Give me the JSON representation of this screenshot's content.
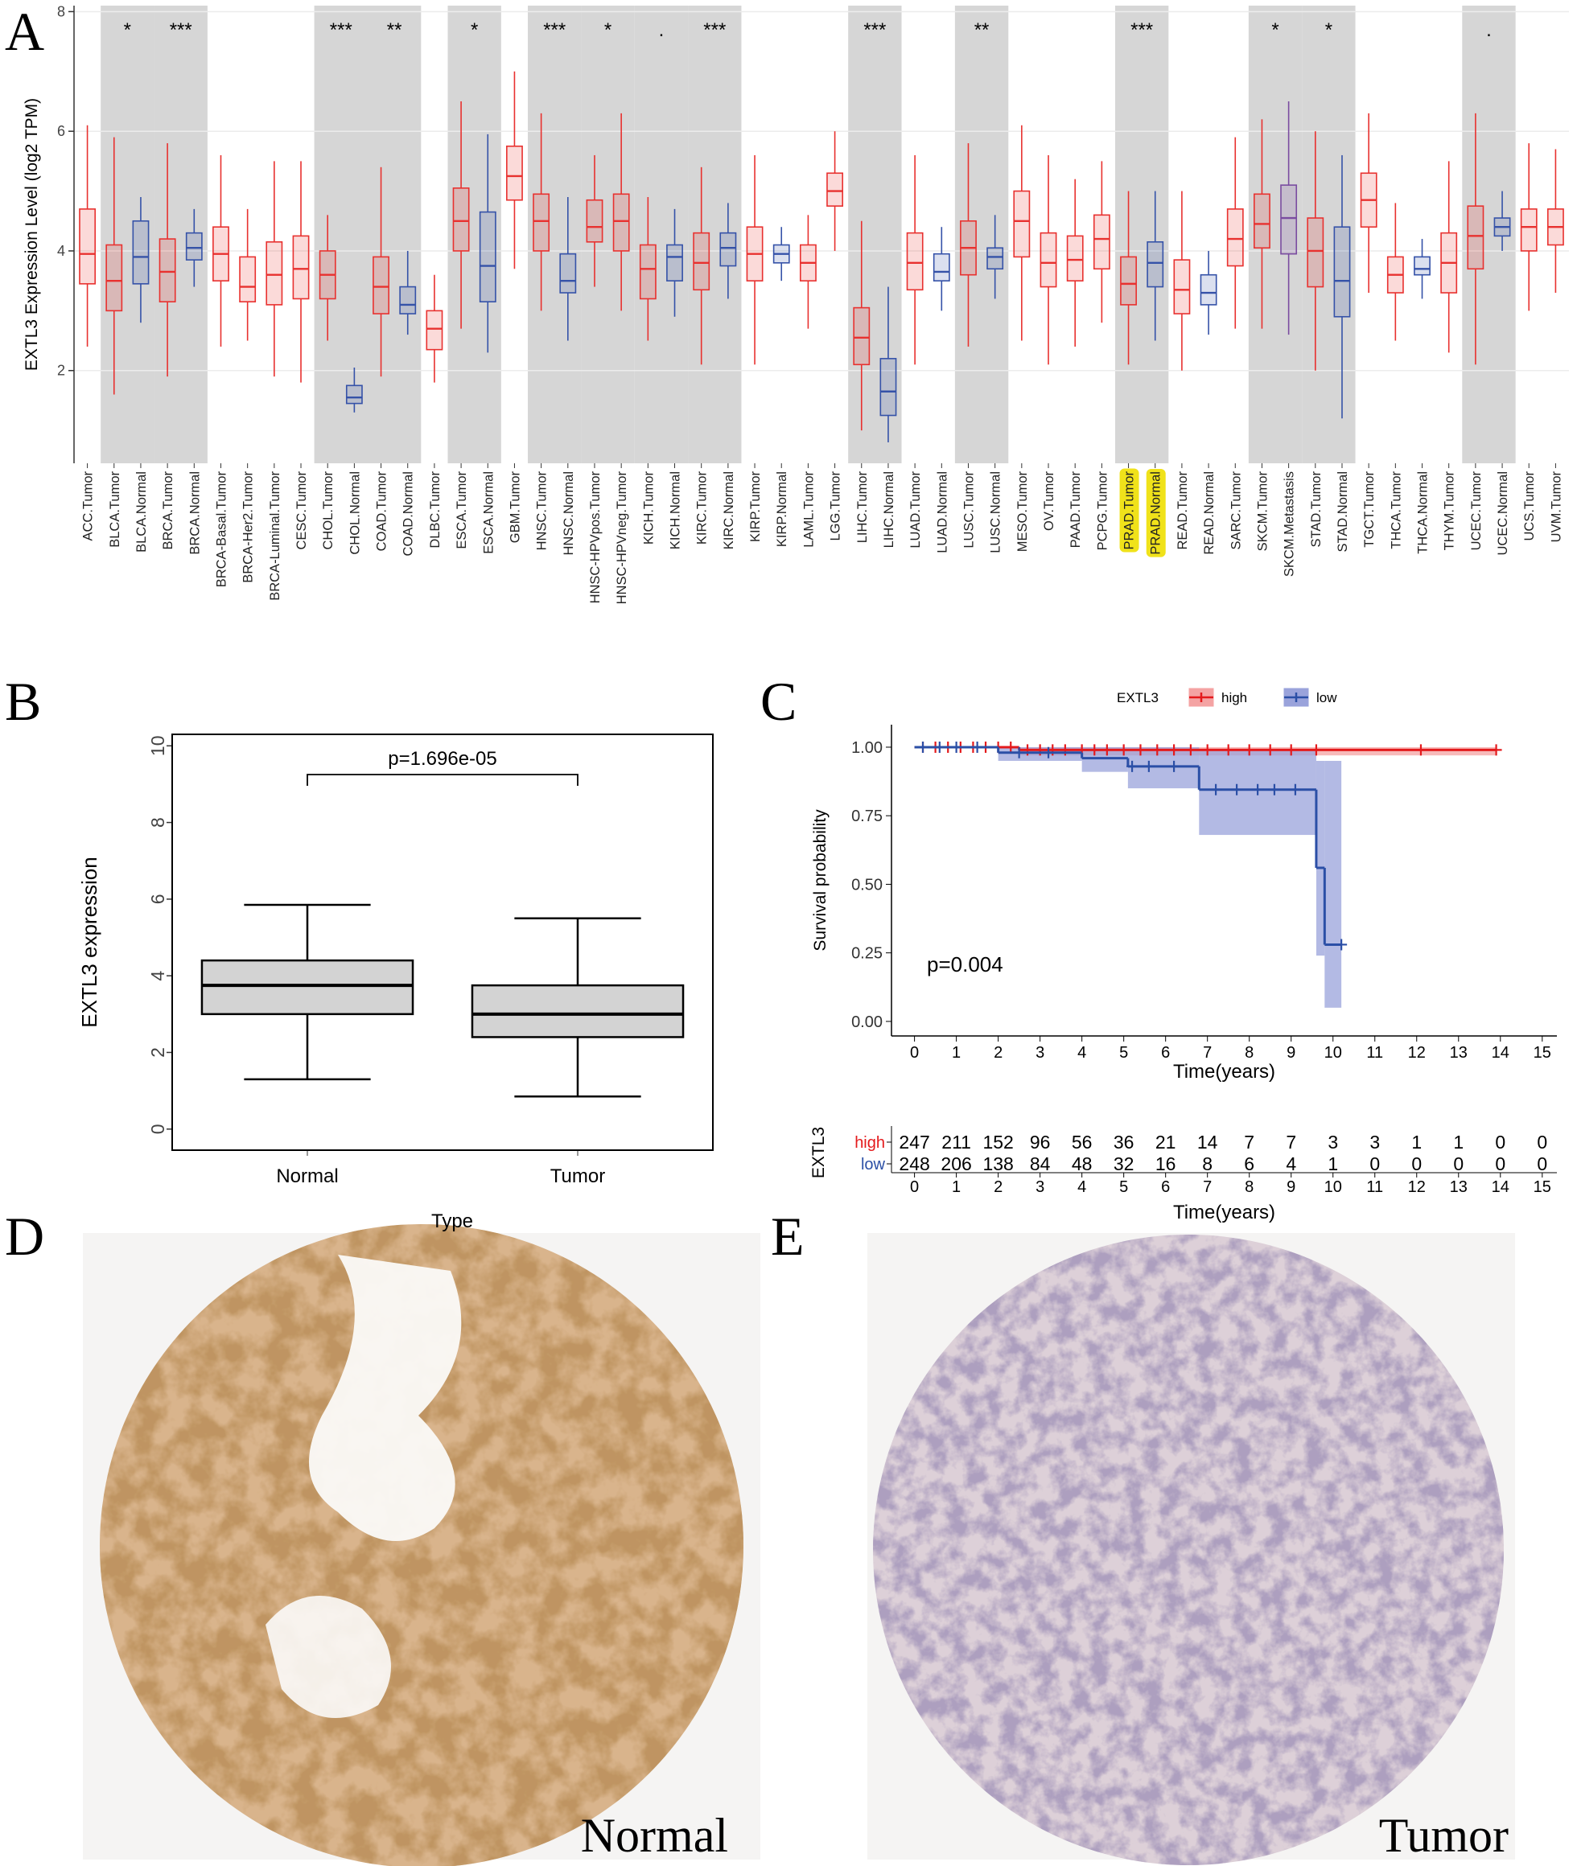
{
  "panel_labels": [
    "A",
    "B",
    "C",
    "D",
    "E"
  ],
  "chart_data": [
    {
      "type": "box",
      "ylabel": "EXTL3 Expression Level (log2 TPM)",
      "categories": [
        "ACC.Tumor",
        "BLCA.Tumor",
        "BLCA.Normal",
        "BRCA.Tumor",
        "BRCA.Normal",
        "BRCA-Basal.Tumor",
        "BRCA-Her2.Tumor",
        "BRCA-Luminal.Tumor",
        "CESC.Tumor",
        "CHOL.Tumor",
        "CHOL.Normal",
        "COAD.Tumor",
        "COAD.Normal",
        "DLBC.Tumor",
        "ESCA.Tumor",
        "ESCA.Normal",
        "GBM.Tumor",
        "HNSC.Tumor",
        "HNSC.Normal",
        "HNSC-HPVpos.Tumor",
        "HNSC-HPVneg.Tumor",
        "KICH.Tumor",
        "KICH.Normal",
        "KIRC.Tumor",
        "KIRC.Normal",
        "KIRP.Tumor",
        "KIRP.Normal",
        "LAML.Tumor",
        "LGG.Tumor",
        "LIHC.Tumor",
        "LIHC.Normal",
        "LUAD.Tumor",
        "LUAD.Normal",
        "LUSC.Tumor",
        "LUSC.Normal",
        "MESO.Tumor",
        "OV.Tumor",
        "PAAD.Tumor",
        "PCPG.Tumor",
        "PRAD.Tumor",
        "PRAD.Normal",
        "READ.Tumor",
        "READ.Normal",
        "SARC.Tumor",
        "SKCM.Tumor",
        "SKCM.Metastasis",
        "STAD.Tumor",
        "STAD.Normal",
        "TGCT.Tumor",
        "THCA.Tumor",
        "THCA.Normal",
        "THYM.Tumor",
        "UCEC.Tumor",
        "UCEC.Normal",
        "UCS.Tumor",
        "UVM.Tumor"
      ],
      "median": [
        3.95,
        3.5,
        3.9,
        3.65,
        4.05,
        3.95,
        3.4,
        3.6,
        3.7,
        3.6,
        1.55,
        3.4,
        3.1,
        2.7,
        4.5,
        3.75,
        5.25,
        4.5,
        3.5,
        4.4,
        4.5,
        3.7,
        3.9,
        3.8,
        4.05,
        3.95,
        3.95,
        3.8,
        5.0,
        2.55,
        1.65,
        3.8,
        3.65,
        4.05,
        3.9,
        4.5,
        3.8,
        3.85,
        4.2,
        3.45,
        3.8,
        3.35,
        3.3,
        4.2,
        4.45,
        4.55,
        4.0,
        3.5,
        4.85,
        3.6,
        3.7,
        3.8,
        4.25,
        4.4,
        4.4,
        4.4
      ],
      "q1": [
        3.45,
        3.0,
        3.45,
        3.15,
        3.85,
        3.5,
        3.15,
        3.1,
        3.2,
        3.2,
        1.45,
        2.95,
        2.95,
        2.35,
        4.0,
        3.15,
        4.85,
        4.0,
        3.3,
        4.15,
        4.0,
        3.2,
        3.5,
        3.35,
        3.75,
        3.5,
        3.8,
        3.5,
        4.75,
        2.1,
        1.25,
        3.35,
        3.5,
        3.6,
        3.7,
        3.9,
        3.4,
        3.5,
        3.7,
        3.1,
        3.4,
        2.95,
        3.1,
        3.75,
        4.05,
        3.95,
        3.4,
        2.9,
        4.4,
        3.3,
        3.6,
        3.3,
        3.7,
        4.25,
        4.0,
        4.1
      ],
      "q3": [
        4.7,
        4.1,
        4.5,
        4.2,
        4.3,
        4.4,
        3.9,
        4.15,
        4.25,
        4.0,
        1.75,
        3.9,
        3.4,
        3.0,
        5.05,
        4.65,
        5.75,
        4.95,
        3.95,
        4.85,
        4.95,
        4.1,
        4.1,
        4.3,
        4.3,
        4.4,
        4.1,
        4.1,
        5.3,
        3.05,
        2.2,
        4.3,
        3.95,
        4.5,
        4.05,
        5.0,
        4.3,
        4.25,
        4.6,
        3.9,
        4.15,
        3.85,
        3.6,
        4.7,
        4.95,
        5.1,
        4.55,
        4.4,
        5.3,
        3.9,
        3.9,
        4.3,
        4.75,
        4.55,
        4.7,
        4.7
      ],
      "whisker_low": [
        2.4,
        1.6,
        2.8,
        1.9,
        3.4,
        2.4,
        2.5,
        1.9,
        1.8,
        2.5,
        1.3,
        1.9,
        2.6,
        1.8,
        2.7,
        2.3,
        3.7,
        3.0,
        2.5,
        3.4,
        3.0,
        2.5,
        2.9,
        2.1,
        3.2,
        2.1,
        3.5,
        2.7,
        4.0,
        1.0,
        0.8,
        2.1,
        3.0,
        2.4,
        3.2,
        2.5,
        2.1,
        2.4,
        2.8,
        2.1,
        2.5,
        2.0,
        2.6,
        2.7,
        2.7,
        2.6,
        2.0,
        1.2,
        3.3,
        2.5,
        3.2,
        2.3,
        2.1,
        4.0,
        3.0,
        3.3
      ],
      "whisker_high": [
        6.1,
        5.9,
        4.9,
        5.8,
        4.7,
        5.6,
        4.7,
        5.5,
        5.5,
        4.6,
        2.05,
        5.4,
        4.0,
        3.6,
        6.5,
        5.95,
        7.0,
        6.3,
        4.9,
        5.6,
        6.3,
        4.9,
        4.7,
        5.4,
        4.8,
        5.6,
        4.4,
        4.6,
        6.0,
        4.5,
        3.4,
        5.6,
        4.4,
        5.8,
        4.6,
        6.1,
        5.6,
        5.2,
        5.5,
        5.0,
        5.0,
        5.0,
        4.0,
        5.9,
        6.2,
        6.5,
        6.0,
        5.6,
        6.3,
        4.8,
        4.2,
        5.5,
        6.3,
        5.0,
        5.8,
        5.7
      ],
      "colors": [
        "#e8312f",
        "#e8312f",
        "#3552a8",
        "#e8312f",
        "#3552a8",
        "#e8312f",
        "#e8312f",
        "#e8312f",
        "#e8312f",
        "#e8312f",
        "#3552a8",
        "#e8312f",
        "#3552a8",
        "#e8312f",
        "#e8312f",
        "#3552a8",
        "#e8312f",
        "#e8312f",
        "#3552a8",
        "#e8312f",
        "#e8312f",
        "#e8312f",
        "#3552a8",
        "#e8312f",
        "#3552a8",
        "#e8312f",
        "#3552a8",
        "#e8312f",
        "#e8312f",
        "#e8312f",
        "#3552a8",
        "#e8312f",
        "#3552a8",
        "#e8312f",
        "#3552a8",
        "#e8312f",
        "#e8312f",
        "#e8312f",
        "#e8312f",
        "#e8312f",
        "#3552a8",
        "#e8312f",
        "#3552a8",
        "#e8312f",
        "#e8312f",
        "#7a4ca0",
        "#e8312f",
        "#3552a8",
        "#e8312f",
        "#e8312f",
        "#3552a8",
        "#e8312f",
        "#e8312f",
        "#3552a8",
        "#e8312f",
        "#e8312f"
      ],
      "highlight": [
        39,
        40
      ],
      "highlight_color": "#f0e21a",
      "shade_color": "#d6d6d6",
      "significance": [
        {
          "from": 1,
          "to": 2,
          "label": "*"
        },
        {
          "from": 3,
          "to": 4,
          "label": "***"
        },
        {
          "from": 9,
          "to": 10,
          "label": "***"
        },
        {
          "from": 11,
          "to": 12,
          "label": "**"
        },
        {
          "from": 14,
          "to": 15,
          "label": "*"
        },
        {
          "from": 17,
          "to": 18,
          "label": "***"
        },
        {
          "from": 19,
          "to": 20,
          "label": "*"
        },
        {
          "from": 21,
          "to": 22,
          "label": "."
        },
        {
          "from": 23,
          "to": 24,
          "label": "***"
        },
        {
          "from": 29,
          "to": 30,
          "label": "***"
        },
        {
          "from": 33,
          "to": 34,
          "label": "**"
        },
        {
          "from": 39,
          "to": 40,
          "label": "***"
        },
        {
          "from": 44,
          "to": 45,
          "label": "*"
        },
        {
          "from": 46,
          "to": 47,
          "label": "*"
        },
        {
          "from": 52,
          "to": 53,
          "label": "."
        }
      ],
      "ylim": [
        0.45,
        8.1
      ],
      "yticks": [
        2,
        4,
        6,
        8
      ],
      "grid": true
    },
    {
      "type": "box",
      "ylabel": "EXTL3 expression",
      "categories": [
        "Normal",
        "Tumor"
      ],
      "median": [
        3.75,
        3.0
      ],
      "q1": [
        3.0,
        2.4
      ],
      "q3": [
        4.4,
        3.75
      ],
      "whisker_low": [
        1.3,
        0.85
      ],
      "whisker_high": [
        5.85,
        5.5
      ],
      "colors": [
        "#000000",
        "#000000"
      ],
      "fill": "#d3d3d3",
      "caps": true,
      "annotation": "p=1.696e-05",
      "legend_title": "Type",
      "ylim": [
        -0.55,
        10.3
      ],
      "yticks": [
        0,
        2,
        4,
        6,
        8,
        10
      ],
      "grid": false
    },
    {
      "type": "km",
      "legend_title": "EXTL3",
      "xlabel": "Time(years)",
      "ylabel": "Survival probability",
      "annotation": "p=0.004",
      "series": [
        {
          "name": "high",
          "color": "#e41a1c",
          "band": "#f4a3a3",
          "x": [
            0,
            2.5,
            13.9
          ],
          "values": [
            1,
            0.99,
            0.99
          ],
          "ci_lower": [
            1,
            0.97,
            0.97
          ],
          "ci_upper": [
            1,
            1,
            1
          ],
          "censor_x": [
            0.2,
            0.5,
            0.8,
            1.1,
            1.4,
            1.7,
            2.0,
            2.3,
            2.7,
            3.0,
            3.3,
            3.6,
            4.0,
            4.3,
            4.6,
            5.0,
            5.4,
            5.8,
            6.2,
            6.6,
            7.0,
            7.5,
            8.0,
            8.5,
            9.0,
            9.6,
            12.1
          ]
        },
        {
          "name": "low",
          "color": "#2b4fa6",
          "band": "#9aa3db",
          "x": [
            0,
            2,
            4,
            5.1,
            6.8,
            9.6,
            9.8,
            10.2
          ],
          "values": [
            1,
            0.98,
            0.96,
            0.93,
            0.845,
            0.56,
            0.28,
            0.28
          ],
          "ci_lower": [
            1,
            0.95,
            0.91,
            0.85,
            0.68,
            0.24,
            0.05,
            0.05
          ],
          "ci_upper": [
            1,
            1,
            1,
            1,
            0.99,
            0.95,
            0.95,
            0.95
          ],
          "censor_x": [
            0.2,
            0.6,
            1.0,
            1.5,
            2.5,
            3.2,
            5.2,
            5.6,
            6.2,
            7.2,
            7.7,
            8.2,
            8.6,
            9.1
          ]
        }
      ],
      "xlim": [
        -0.55,
        15.35
      ],
      "ylim": [
        -0.053,
        1.082
      ],
      "xticks": [
        0,
        1,
        2,
        3,
        4,
        5,
        6,
        7,
        8,
        9,
        10,
        11,
        12,
        13,
        14,
        15
      ],
      "yticks": [
        {
          "value": 0,
          "label": "0.00"
        },
        {
          "value": 0.25,
          "label": "0.25"
        },
        {
          "value": 0.5,
          "label": "0.50"
        },
        {
          "value": 0.75,
          "label": "0.75"
        },
        {
          "value": 1,
          "label": "1.00"
        }
      ],
      "risk_table": {
        "title": "EXTL3",
        "xlabel": "Time(years)",
        "times": [
          0,
          1,
          2,
          3,
          4,
          5,
          6,
          7,
          8,
          9,
          10,
          11,
          12,
          13,
          14,
          15
        ],
        "rows": [
          {
            "name": "high",
            "color": "#e41a1c",
            "values": [
              247,
              211,
              152,
              96,
              56,
              36,
              21,
              14,
              7,
              7,
              3,
              3,
              1,
              1,
              0,
              0
            ]
          },
          {
            "name": "low",
            "color": "#2b4fa6",
            "values": [
              248,
              206,
              138,
              84,
              48,
              32,
              16,
              8,
              6,
              4,
              1,
              0,
              0,
              0,
              0,
              0
            ]
          }
        ]
      }
    }
  ],
  "images": [
    {
      "label": "Normal"
    },
    {
      "label": "Tumor"
    }
  ]
}
